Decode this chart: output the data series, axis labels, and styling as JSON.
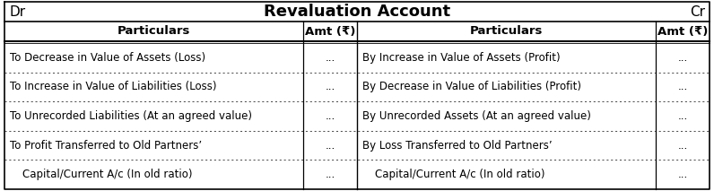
{
  "title": "Revaluation Account",
  "dr_label": "Dr",
  "cr_label": "Cr",
  "header_left": [
    "Particulars",
    "Amt (₹)"
  ],
  "header_right": [
    "Particulars",
    "Amt (₹)"
  ],
  "rows_left": [
    [
      "To Decrease in Value of Assets (Loss)",
      "..."
    ],
    [
      "To Increase in Value of Liabilities (Loss)",
      "..."
    ],
    [
      "To Unrecorded Liabilities (At an agreed value)",
      "..."
    ],
    [
      "To Profit Transferred to Old Partners’",
      "..."
    ],
    [
      "    Capital/Current A/c (In old ratio)",
      "..."
    ]
  ],
  "rows_right": [
    [
      "By Increase in Value of Assets (Profit)",
      "..."
    ],
    [
      "By Decrease in Value of Liabilities (Profit)",
      "..."
    ],
    [
      "By Unrecorded Assets (At an agreed value)",
      "..."
    ],
    [
      "By Loss Transferred to Old Partners’",
      "..."
    ],
    [
      "    Capital/Current A/c (In old ratio)",
      "..."
    ]
  ],
  "bg_color": "#ffffff",
  "border_color": "#000000",
  "text_color": "#000000",
  "title_fontsize": 13,
  "header_fontsize": 9.5,
  "row_fontsize": 8.5,
  "drcr_fontsize": 11
}
